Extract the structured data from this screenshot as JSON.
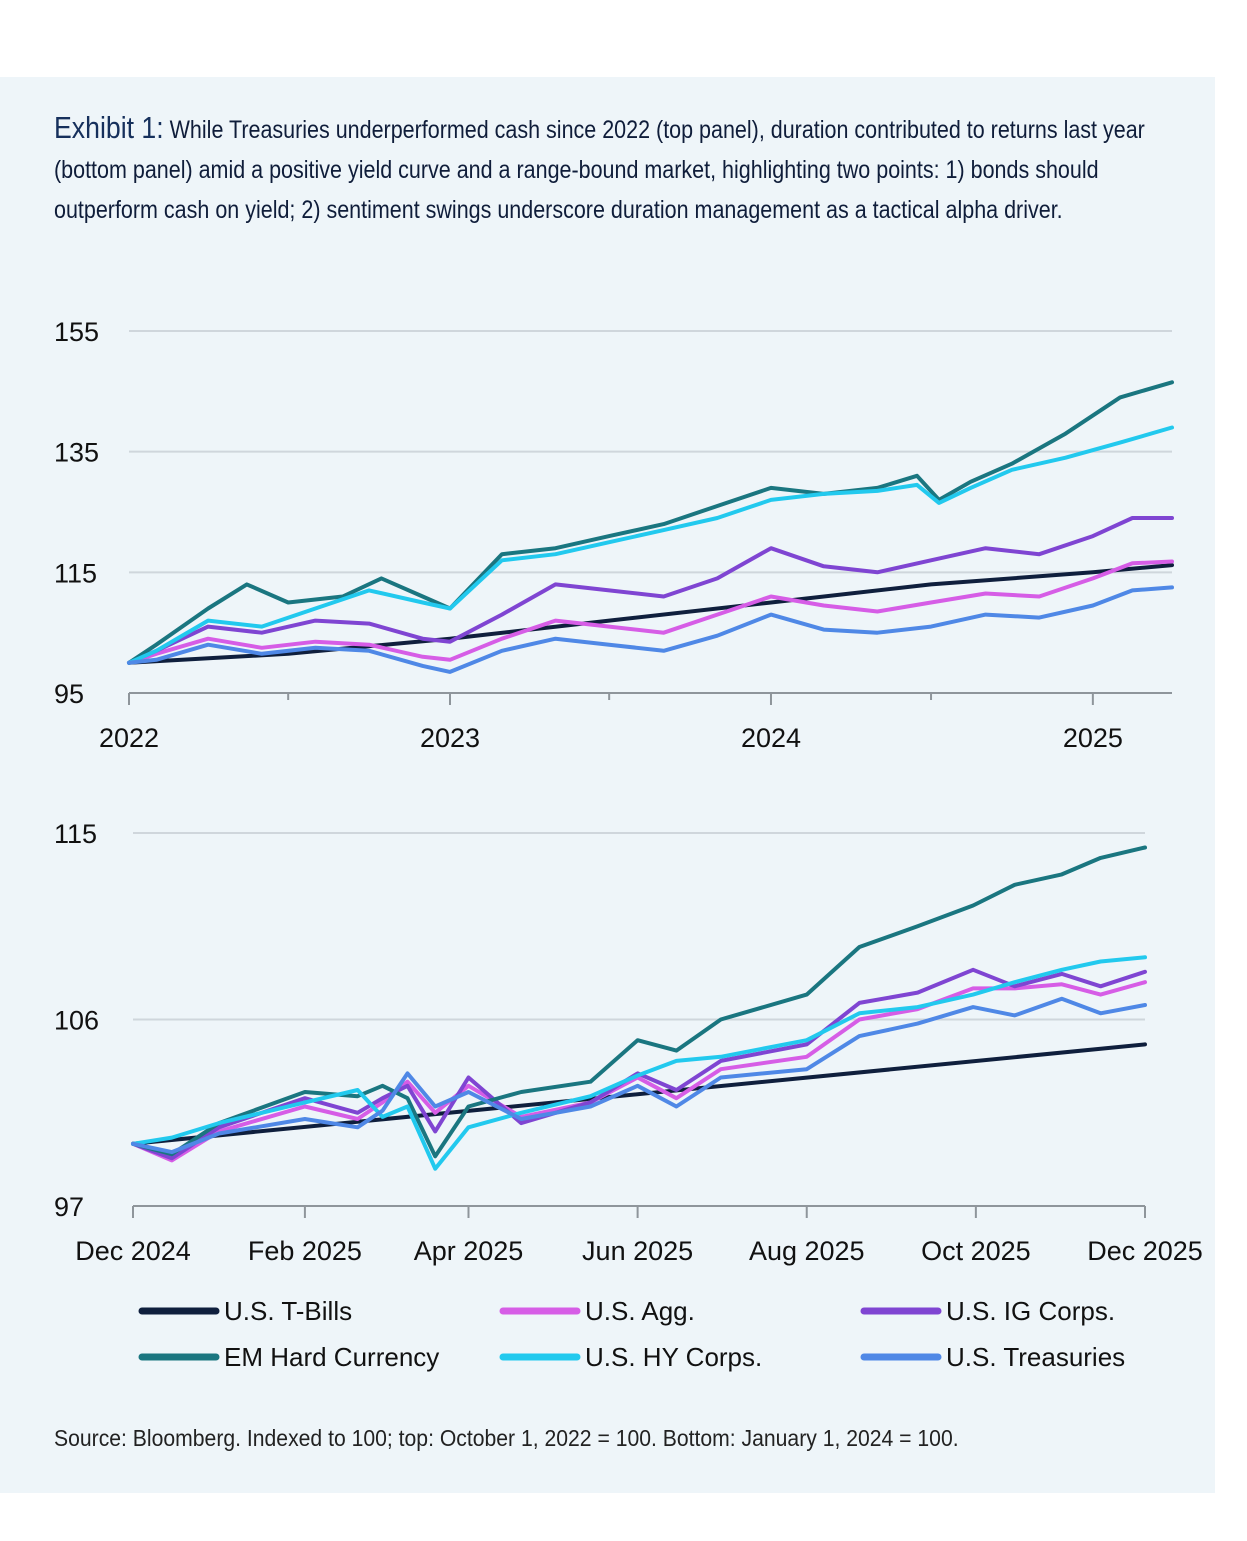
{
  "header": {
    "exhibit_label": "Exhibit 1:",
    "title": "While Treasuries underperformed cash since 2022 (top panel), duration contributed to returns last year (bottom panel) amid a positive yield curve and a range-bound market, highlighting two points: 1) bonds should outperform cash on yield; 2) sentiment swings underscore duration management as a tactical alpha driver."
  },
  "footer": {
    "source": "Source: Bloomberg. Indexed to 100; top: October 1, 2022 = 100. Bottom: January 1, 2024 = 100."
  },
  "chart_data": [
    {
      "type": "line",
      "panel": "top",
      "xlim": [
        "2022-01-01",
        "2025-04-01"
      ],
      "ylim": [
        95,
        155
      ],
      "yticks": [
        95,
        115,
        135,
        155
      ],
      "x_tick_labels": [
        {
          "date": "2022-01-01",
          "label": "2022"
        },
        {
          "date": "2023-01-01",
          "label": "2023"
        },
        {
          "date": "2024-01-01",
          "label": "2024"
        },
        {
          "date": "2025-01-01",
          "label": "2025"
        }
      ],
      "grid": true,
      "series": [
        {
          "name": "U.S. T-Bills",
          "color": "#0f1f3d",
          "x": [
            "2022-01-01",
            "2022-07-01",
            "2023-01-01",
            "2023-07-01",
            "2024-01-01",
            "2024-07-01",
            "2025-01-01",
            "2025-04-01"
          ],
          "y": [
            100,
            101.5,
            104,
            107,
            110,
            113,
            115,
            116.2
          ]
        },
        {
          "name": "U.S. Agg.",
          "color": "#d65de6",
          "x": [
            "2022-01-01",
            "2022-02-01",
            "2022-04-01",
            "2022-06-01",
            "2022-08-01",
            "2022-10-01",
            "2022-12-01",
            "2023-01-01",
            "2023-03-01",
            "2023-05-01",
            "2023-07-01",
            "2023-09-01",
            "2023-11-01",
            "2024-01-01",
            "2024-03-01",
            "2024-05-01",
            "2024-07-01",
            "2024-09-01",
            "2024-11-01",
            "2025-01-01",
            "2025-02-15",
            "2025-04-01"
          ],
          "y": [
            100,
            101.5,
            104,
            102.5,
            103.5,
            103,
            101,
            100.5,
            104,
            107,
            106,
            105,
            108,
            111,
            109.5,
            108.5,
            110,
            111.5,
            111,
            114,
            116.5,
            116.8
          ]
        },
        {
          "name": "U.S. IG Corps.",
          "color": "#7f45d2",
          "x": [
            "2022-01-01",
            "2022-02-01",
            "2022-04-01",
            "2022-06-01",
            "2022-08-01",
            "2022-10-01",
            "2022-12-01",
            "2023-01-01",
            "2023-03-01",
            "2023-05-01",
            "2023-07-01",
            "2023-09-01",
            "2023-11-01",
            "2024-01-01",
            "2024-03-01",
            "2024-05-01",
            "2024-07-01",
            "2024-09-01",
            "2024-11-01",
            "2025-01-01",
            "2025-02-15",
            "2025-04-01"
          ],
          "y": [
            100,
            102,
            106,
            105,
            107,
            106.5,
            104,
            103.5,
            108,
            113,
            112,
            111,
            114,
            119,
            116,
            115,
            117,
            119,
            118,
            121,
            124,
            124
          ]
        },
        {
          "name": "EM Hard Currency",
          "color": "#1a7680",
          "x": [
            "2022-01-01",
            "2022-02-01",
            "2022-04-01",
            "2022-05-15",
            "2022-07-01",
            "2022-09-01",
            "2022-10-15",
            "2022-12-01",
            "2023-01-01",
            "2023-03-01",
            "2023-05-01",
            "2023-07-01",
            "2023-09-01",
            "2023-11-01",
            "2024-01-01",
            "2024-03-01",
            "2024-05-01",
            "2024-06-15",
            "2024-07-10",
            "2024-08-15",
            "2024-10-01",
            "2024-12-01",
            "2025-02-01",
            "2025-04-01"
          ],
          "y": [
            100,
            103,
            109,
            113,
            110,
            111,
            114,
            111,
            109,
            118,
            119,
            121,
            123,
            126,
            129,
            128,
            129,
            131,
            127,
            130,
            133,
            138,
            144,
            146.5
          ]
        },
        {
          "name": "U.S. HY Corps.",
          "color": "#22c9ee",
          "x": [
            "2022-01-01",
            "2022-02-01",
            "2022-04-01",
            "2022-06-01",
            "2022-08-01",
            "2022-10-01",
            "2022-12-01",
            "2023-01-01",
            "2023-03-01",
            "2023-05-01",
            "2023-07-01",
            "2023-09-01",
            "2023-11-01",
            "2024-01-01",
            "2024-03-01",
            "2024-05-01",
            "2024-06-15",
            "2024-07-10",
            "2024-08-15",
            "2024-10-01",
            "2024-12-01",
            "2025-02-01",
            "2025-04-01"
          ],
          "y": [
            100,
            102,
            107,
            106,
            109,
            112,
            110,
            109,
            117,
            118,
            120,
            122,
            124,
            127,
            128,
            128.5,
            129.5,
            126.5,
            129,
            132,
            134,
            136.5,
            139
          ]
        },
        {
          "name": "U.S. Treasuries",
          "color": "#4f88e6",
          "x": [
            "2022-01-01",
            "2022-02-01",
            "2022-04-01",
            "2022-06-01",
            "2022-08-01",
            "2022-10-01",
            "2022-12-01",
            "2023-01-01",
            "2023-03-01",
            "2023-05-01",
            "2023-07-01",
            "2023-09-01",
            "2023-11-01",
            "2024-01-01",
            "2024-03-01",
            "2024-05-01",
            "2024-07-01",
            "2024-09-01",
            "2024-11-01",
            "2025-01-01",
            "2025-02-15",
            "2025-04-01"
          ],
          "y": [
            100,
            100.5,
            103,
            101.5,
            102.5,
            102,
            99.5,
            98.5,
            102,
            104,
            103,
            102,
            104.5,
            108,
            105.5,
            105,
            106,
            108,
            107.5,
            109.5,
            112,
            112.5
          ]
        }
      ]
    },
    {
      "type": "line",
      "panel": "bottom",
      "xlim": [
        "2024-12-01",
        "2025-12-01"
      ],
      "ylim": [
        97,
        115
      ],
      "yticks": [
        97,
        106,
        115
      ],
      "x_tick_labels": [
        {
          "date": "2024-12-01",
          "label": "Dec 2024"
        },
        {
          "date": "2025-02-01",
          "label": "Feb 2025"
        },
        {
          "date": "2025-04-01",
          "label": "Apr 2025"
        },
        {
          "date": "2025-06-01",
          "label": "Jun 2025"
        },
        {
          "date": "2025-08-01",
          "label": "Aug 2025"
        },
        {
          "date": "2025-10-01",
          "label": "Oct 2025"
        },
        {
          "date": "2025-12-01",
          "label": "Dec 2025"
        }
      ],
      "grid": true,
      "series": [
        {
          "name": "U.S. T-Bills",
          "color": "#0f1f3d",
          "x": [
            "2024-12-01",
            "2025-12-01"
          ],
          "y": [
            100,
            104.8
          ]
        },
        {
          "name": "U.S. Agg.",
          "color": "#d65de6",
          "x": [
            "2024-12-01",
            "2024-12-15",
            "2025-01-01",
            "2025-02-01",
            "2025-02-20",
            "2025-03-01",
            "2025-03-10",
            "2025-03-20",
            "2025-04-01",
            "2025-04-20",
            "2025-05-15",
            "2025-06-01",
            "2025-06-15",
            "2025-07-01",
            "2025-08-01",
            "2025-08-20",
            "2025-09-10",
            "2025-09-30",
            "2025-10-15",
            "2025-11-01",
            "2025-11-15",
            "2025-12-01"
          ],
          "y": [
            100,
            99.2,
            100.6,
            101.8,
            101.2,
            102,
            103,
            101.5,
            102.8,
            101.3,
            102,
            103.2,
            102.2,
            103.6,
            104.2,
            106,
            106.5,
            107.5,
            107.5,
            107.7,
            107.2,
            107.8
          ]
        },
        {
          "name": "U.S. IG Corps.",
          "color": "#7f45d2",
          "x": [
            "2024-12-01",
            "2024-12-15",
            "2025-01-01",
            "2025-02-01",
            "2025-02-20",
            "2025-03-01",
            "2025-03-10",
            "2025-03-20",
            "2025-04-01",
            "2025-04-20",
            "2025-05-15",
            "2025-06-01",
            "2025-06-15",
            "2025-07-01",
            "2025-08-01",
            "2025-08-20",
            "2025-09-10",
            "2025-09-30",
            "2025-10-15",
            "2025-11-01",
            "2025-11-15",
            "2025-12-01"
          ],
          "y": [
            100,
            99.3,
            100.8,
            102.2,
            101.5,
            102.2,
            102.8,
            100.6,
            103.2,
            101,
            102,
            103.4,
            102.6,
            104,
            104.8,
            106.8,
            107.3,
            108.4,
            107.6,
            108.2,
            107.6,
            108.3
          ]
        },
        {
          "name": "EM Hard Currency",
          "color": "#1a7680",
          "x": [
            "2024-12-01",
            "2024-12-15",
            "2025-01-01",
            "2025-02-01",
            "2025-02-20",
            "2025-03-01",
            "2025-03-10",
            "2025-03-20",
            "2025-04-01",
            "2025-04-20",
            "2025-05-15",
            "2025-06-01",
            "2025-06-15",
            "2025-07-01",
            "2025-08-01",
            "2025-08-20",
            "2025-09-10",
            "2025-09-30",
            "2025-10-15",
            "2025-11-01",
            "2025-11-15",
            "2025-12-01"
          ],
          "y": [
            100,
            99.5,
            101,
            102.5,
            102.3,
            102.8,
            102.2,
            99.4,
            101.8,
            102.5,
            103,
            105,
            104.5,
            106,
            107.2,
            109.5,
            110.5,
            111.5,
            112.5,
            113,
            113.8,
            114.3
          ]
        },
        {
          "name": "U.S. HY Corps.",
          "color": "#22c9ee",
          "x": [
            "2024-12-01",
            "2024-12-15",
            "2025-01-01",
            "2025-02-01",
            "2025-02-20",
            "2025-03-01",
            "2025-03-10",
            "2025-03-20",
            "2025-04-01",
            "2025-04-20",
            "2025-05-15",
            "2025-06-01",
            "2025-06-15",
            "2025-07-01",
            "2025-08-01",
            "2025-08-20",
            "2025-09-10",
            "2025-09-30",
            "2025-10-15",
            "2025-11-01",
            "2025-11-15",
            "2025-12-01"
          ],
          "y": [
            100,
            100.3,
            101,
            102,
            102.6,
            101.3,
            101.8,
            98.8,
            100.8,
            101.5,
            102.3,
            103.3,
            104,
            104.2,
            105,
            106.3,
            106.6,
            107.2,
            107.8,
            108.4,
            108.8,
            109
          ]
        },
        {
          "name": "U.S. Treasuries",
          "color": "#4f88e6",
          "x": [
            "2024-12-01",
            "2024-12-15",
            "2025-01-01",
            "2025-02-01",
            "2025-02-20",
            "2025-03-01",
            "2025-03-10",
            "2025-03-20",
            "2025-04-01",
            "2025-04-20",
            "2025-05-15",
            "2025-06-01",
            "2025-06-15",
            "2025-07-01",
            "2025-08-01",
            "2025-08-20",
            "2025-09-10",
            "2025-09-30",
            "2025-10-15",
            "2025-11-01",
            "2025-11-15",
            "2025-12-01"
          ],
          "y": [
            100,
            99.6,
            100.5,
            101.2,
            100.8,
            101.6,
            103.4,
            101.8,
            102.5,
            101.2,
            101.8,
            102.8,
            101.8,
            103.2,
            103.6,
            105.2,
            105.8,
            106.6,
            106.2,
            107,
            106.3,
            106.7
          ]
        }
      ]
    }
  ],
  "legend": {
    "items": [
      {
        "label": "U.S. T-Bills",
        "color": "#0f1f3d"
      },
      {
        "label": "U.S. Agg.",
        "color": "#d65de6"
      },
      {
        "label": "U.S. IG Corps.",
        "color": "#7f45d2"
      },
      {
        "label": "EM Hard Currency",
        "color": "#1a7680"
      },
      {
        "label": "U.S. HY Corps.",
        "color": "#22c9ee"
      },
      {
        "label": "U.S. Treasuries",
        "color": "#4f88e6"
      }
    ]
  }
}
